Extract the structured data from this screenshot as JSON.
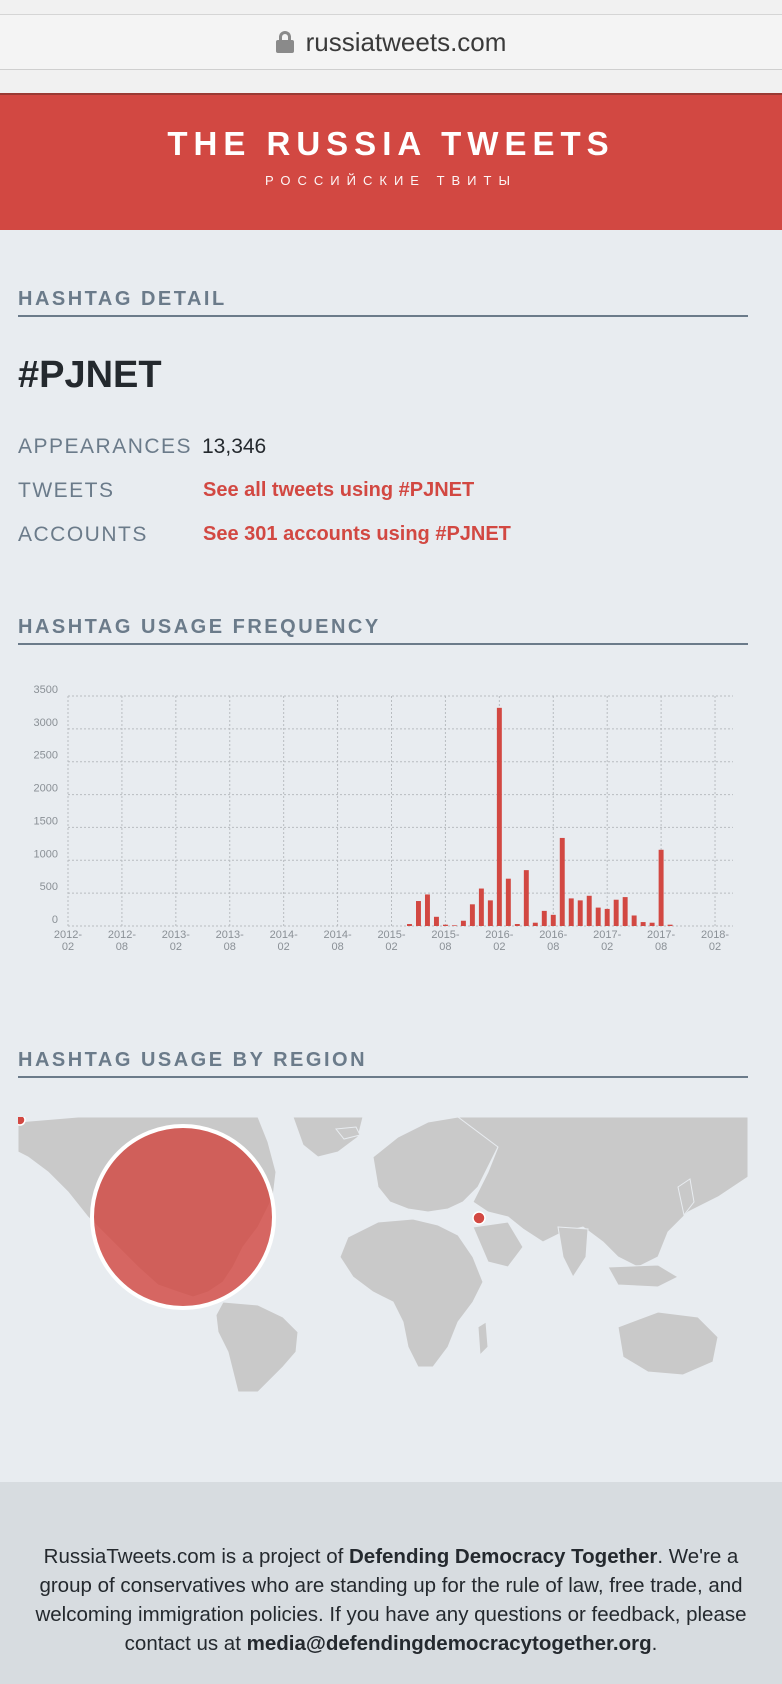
{
  "browser": {
    "url": "russiatweets.com"
  },
  "header": {
    "title": "THE RUSSIA TWEETS",
    "subtitle": "РОССИЙСКИЕ ТВИТЫ"
  },
  "detail": {
    "heading": "HASHTAG DETAIL",
    "hashtag": "#PJNET",
    "appearances_label": "APPEARANCES",
    "appearances_value": "13,346",
    "tweets_label": "TWEETS",
    "tweets_link": "See all tweets using #PJNET",
    "accounts_label": "ACCOUNTS",
    "accounts_link": "See 301 accounts using #PJNET"
  },
  "frequency": {
    "heading": "HASHTAG USAGE FREQUENCY"
  },
  "chart_data": {
    "type": "bar",
    "title": "",
    "xlabel": "",
    "ylabel": "",
    "ylim": [
      0,
      3500
    ],
    "yticks": [
      0,
      500,
      1000,
      1500,
      2000,
      2500,
      3000,
      3500
    ],
    "xtick_labels": [
      [
        "2012-",
        "02"
      ],
      [
        "2012-",
        "08"
      ],
      [
        "2013-",
        "02"
      ],
      [
        "2013-",
        "08"
      ],
      [
        "2014-",
        "02"
      ],
      [
        "2014-",
        "08"
      ],
      [
        "2015-",
        "02"
      ],
      [
        "2015-",
        "08"
      ],
      [
        "2016-",
        "02"
      ],
      [
        "2016-",
        "08"
      ],
      [
        "2017-",
        "02"
      ],
      [
        "2017-",
        "08"
      ],
      [
        "2018-",
        "02"
      ]
    ],
    "x_start_month": "2012-02",
    "grid": true,
    "color": "#d24842",
    "months": [
      "2015-04",
      "2015-05",
      "2015-06",
      "2015-07",
      "2015-08",
      "2015-09",
      "2015-10",
      "2015-11",
      "2015-12",
      "2016-01",
      "2016-02",
      "2016-03",
      "2016-04",
      "2016-05",
      "2016-06",
      "2016-07",
      "2016-08",
      "2016-09",
      "2016-10",
      "2016-11",
      "2016-12",
      "2017-01",
      "2017-02",
      "2017-03",
      "2017-04",
      "2017-05",
      "2017-06",
      "2017-07",
      "2017-08",
      "2017-09"
    ],
    "values": [
      30,
      380,
      480,
      140,
      20,
      10,
      80,
      330,
      570,
      390,
      3320,
      720,
      30,
      850,
      50,
      230,
      170,
      1340,
      420,
      390,
      460,
      280,
      260,
      400,
      440,
      160,
      60,
      50,
      1160,
      20
    ]
  },
  "region": {
    "heading": "HASHTAG USAGE BY REGION"
  },
  "footer": {
    "text_1": "RussiaTweets.com is a project of ",
    "org": "Defending Democracy Together",
    "text_2": ". We're a group of conservatives who are standing up for the rule of law, free trade, and welcoming immigration policies. If you have any questions or feedback, please contact us at ",
    "email": "media@defendingdemocracytogether.org",
    "text_3": "."
  },
  "colors": {
    "accent": "#d24842",
    "heading": "#6b7b8a",
    "background": "#e8ecf0"
  }
}
